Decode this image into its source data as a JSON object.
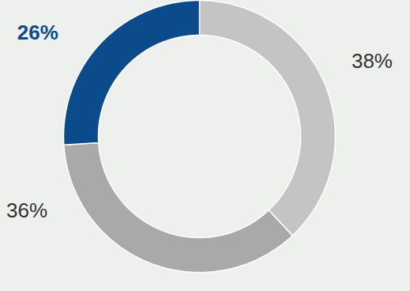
{
  "chart_data": {
    "type": "donut",
    "values": [
      38,
      36,
      26
    ],
    "value_labels": [
      "38%",
      "36%",
      "26%"
    ],
    "colors": [
      "#c4c4c4",
      "#a9a9a9",
      "#0b4a8b"
    ],
    "data_labels": true
  }
}
